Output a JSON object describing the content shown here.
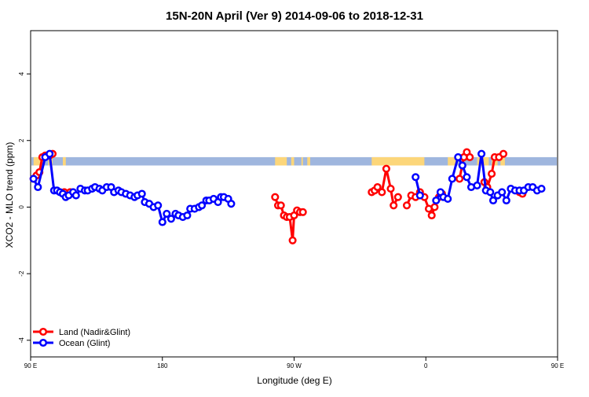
{
  "chart_data": {
    "type": "line",
    "title": "15N-20N April (Ver 9)   2014-09-06 to 2018-12-31",
    "xlabel": "Longitude (deg E)",
    "ylabel": "XCO2 - MLO trend (ppm)",
    "xlim": [
      90,
      450
    ],
    "ylim": [
      -4.5,
      5.3
    ],
    "x_ticks": [
      {
        "value": 90,
        "label": "90 E"
      },
      {
        "value": 180,
        "label": "180"
      },
      {
        "value": 270,
        "label": "90 W"
      },
      {
        "value": 360,
        "label": "0"
      },
      {
        "value": 450,
        "label": "90 E"
      },
      {
        "value": 540,
        "label": "180"
      }
    ],
    "y_ticks": [
      {
        "value": -4,
        "label": "-4"
      },
      {
        "value": -2,
        "label": "-2"
      },
      {
        "value": 0,
        "label": "0"
      },
      {
        "value": 2,
        "label": "2"
      },
      {
        "value": 4,
        "label": "4"
      }
    ],
    "grid": false,
    "legend_position": "bottom-left",
    "colors": {
      "land": "#ff0000",
      "ocean": "#0000ff",
      "band_ocean": "#9fb6de",
      "band_land": "#fcd67a"
    },
    "background_band": {
      "y_min": 1.25,
      "y_max": 1.5
    },
    "series": [
      {
        "name": "Land (Nadir&Glint)",
        "color": "#ff0000",
        "segments": [
          [
            [
              92,
              0.85
            ],
            [
              94,
              0.95
            ],
            [
              96,
              1.05
            ],
            [
              98,
              1.5
            ],
            [
              100,
              1.55
            ],
            [
              103,
              1.55
            ],
            [
              105,
              1.6
            ]
          ],
          [
            [
              113,
              0.45
            ],
            [
              117,
              0.45
            ]
          ],
          [
            [
              257,
              0.3
            ],
            [
              259,
              0.05
            ],
            [
              261,
              0.05
            ],
            [
              263,
              -0.25
            ],
            [
              265,
              -0.3
            ],
            [
              267,
              -0.3
            ],
            [
              269,
              -1.0
            ],
            [
              270,
              -0.25
            ],
            [
              272,
              -0.1
            ],
            [
              274,
              -0.15
            ],
            [
              276,
              -0.15
            ]
          ],
          [
            [
              323,
              0.45
            ],
            [
              325,
              0.5
            ],
            [
              327,
              0.6
            ],
            [
              330,
              0.45
            ],
            [
              333,
              1.15
            ],
            [
              336,
              0.55
            ],
            [
              338,
              0.05
            ],
            [
              341,
              0.3
            ]
          ],
          [
            [
              347,
              0.05
            ],
            [
              350,
              0.35
            ],
            [
              353,
              0.3
            ],
            [
              356,
              0.45
            ],
            [
              359,
              0.3
            ],
            [
              362,
              -0.05
            ],
            [
              364,
              -0.25
            ],
            [
              366,
              0.0
            ],
            [
              369,
              0.3
            ],
            [
              371,
              0.4
            ]
          ],
          [
            [
              383,
              0.85
            ],
            [
              386,
              1.5
            ],
            [
              388,
              1.65
            ],
            [
              390,
              1.5
            ]
          ],
          [
            [
              400,
              0.75
            ],
            [
              402,
              0.6
            ],
            [
              405,
              1.0
            ],
            [
              407,
              1.5
            ],
            [
              410,
              1.5
            ],
            [
              413,
              1.6
            ]
          ],
          [
            [
              424,
              0.45
            ],
            [
              426,
              0.4
            ]
          ]
        ]
      },
      {
        "name": "Ocean (Glint)",
        "color": "#0000ff",
        "segments": [
          [
            [
              92,
              0.85
            ],
            [
              95,
              0.6
            ],
            [
              100,
              1.5
            ],
            [
              103,
              1.6
            ],
            [
              106,
              0.5
            ],
            [
              108,
              0.5
            ],
            [
              110,
              0.45
            ],
            [
              112,
              0.4
            ],
            [
              114,
              0.3
            ],
            [
              116,
              0.35
            ],
            [
              119,
              0.45
            ],
            [
              121,
              0.35
            ],
            [
              124,
              0.55
            ],
            [
              127,
              0.5
            ],
            [
              129,
              0.5
            ],
            [
              132,
              0.55
            ],
            [
              134,
              0.6
            ],
            [
              137,
              0.55
            ],
            [
              139,
              0.5
            ],
            [
              142,
              0.6
            ],
            [
              145,
              0.6
            ],
            [
              147,
              0.45
            ],
            [
              150,
              0.5
            ],
            [
              152,
              0.45
            ],
            [
              155,
              0.4
            ],
            [
              158,
              0.35
            ],
            [
              161,
              0.3
            ],
            [
              163,
              0.35
            ],
            [
              166,
              0.4
            ],
            [
              168,
              0.15
            ],
            [
              171,
              0.1
            ],
            [
              174,
              0.0
            ],
            [
              177,
              0.05
            ],
            [
              180,
              -0.45
            ],
            [
              183,
              -0.2
            ],
            [
              186,
              -0.35
            ],
            [
              189,
              -0.2
            ],
            [
              191,
              -0.25
            ],
            [
              194,
              -0.3
            ],
            [
              197,
              -0.25
            ],
            [
              199,
              -0.05
            ],
            [
              202,
              -0.05
            ],
            [
              205,
              0.0
            ],
            [
              207,
              0.05
            ],
            [
              210,
              0.2
            ],
            [
              212,
              0.2
            ],
            [
              215,
              0.25
            ],
            [
              218,
              0.15
            ],
            [
              220,
              0.3
            ],
            [
              222,
              0.3
            ],
            [
              225,
              0.25
            ],
            [
              227,
              0.1
            ]
          ],
          [
            [
              353,
              0.9
            ],
            [
              356,
              0.35
            ]
          ],
          [
            [
              367,
              0.2
            ],
            [
              370,
              0.45
            ],
            [
              372,
              0.3
            ],
            [
              375,
              0.25
            ],
            [
              378,
              0.85
            ],
            [
              382,
              1.5
            ],
            [
              385,
              1.25
            ],
            [
              388,
              0.9
            ],
            [
              391,
              0.6
            ],
            [
              395,
              0.65
            ],
            [
              398,
              1.6
            ],
            [
              401,
              0.5
            ],
            [
              404,
              0.45
            ],
            [
              406,
              0.2
            ],
            [
              409,
              0.35
            ],
            [
              412,
              0.45
            ],
            [
              415,
              0.2
            ],
            [
              418,
              0.55
            ],
            [
              421,
              0.5
            ],
            [
              424,
              0.5
            ],
            [
              427,
              0.5
            ],
            [
              430,
              0.6
            ],
            [
              433,
              0.6
            ],
            [
              436,
              0.5
            ],
            [
              439,
              0.55
            ]
          ]
        ]
      }
    ]
  }
}
